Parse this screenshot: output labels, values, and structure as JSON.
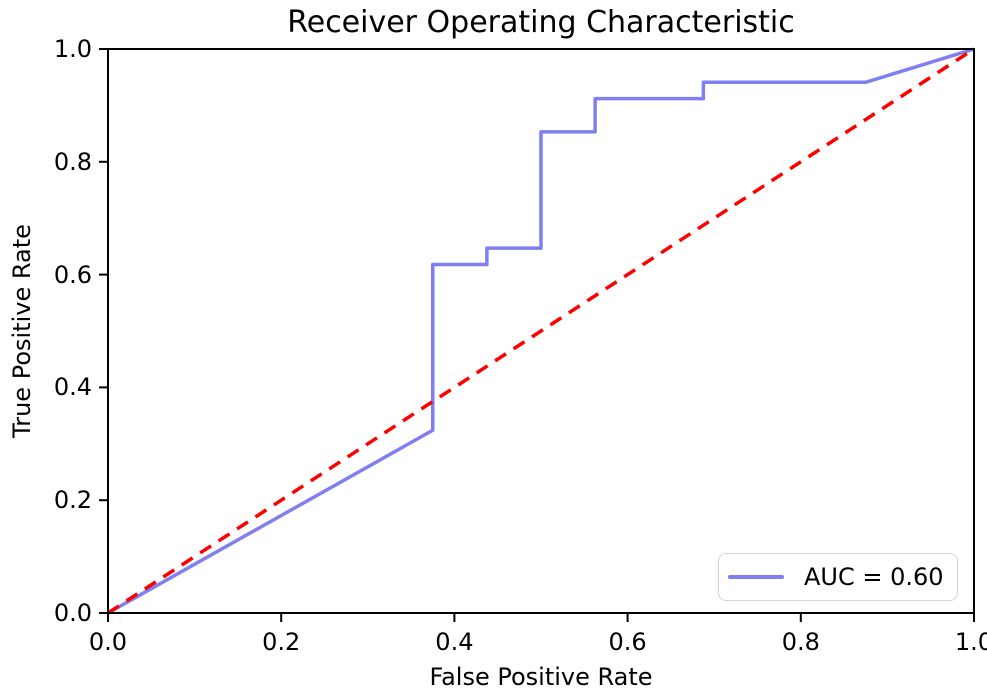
{
  "figure": {
    "background_color": "#ffffff",
    "spine_color": "#000000"
  },
  "chart_data": {
    "type": "line",
    "title": "Receiver Operating Characteristic",
    "xlabel": "False Positive Rate",
    "ylabel": "True Positive Rate",
    "xlim": [
      0.0,
      1.0
    ],
    "ylim": [
      0.0,
      1.0
    ],
    "grid": false,
    "x_ticks": [
      {
        "label": "0.0",
        "value": 0.0
      },
      {
        "label": "0.2",
        "value": 0.2
      },
      {
        "label": "0.4",
        "value": 0.4
      },
      {
        "label": "0.6",
        "value": 0.6
      },
      {
        "label": "0.8",
        "value": 0.8
      },
      {
        "label": "1.0",
        "value": 1.0
      }
    ],
    "y_ticks": [
      {
        "label": "0.0",
        "value": 0.0
      },
      {
        "label": "0.2",
        "value": 0.2
      },
      {
        "label": "0.4",
        "value": 0.4
      },
      {
        "label": "0.6",
        "value": 0.6
      },
      {
        "label": "0.8",
        "value": 0.8
      },
      {
        "label": "1.0",
        "value": 1.0
      }
    ],
    "series": [
      {
        "name": "roc-curve",
        "legend": "AUC = 0.60",
        "color": "#7f7ff2",
        "style": "solid",
        "points": [
          [
            0.0,
            0.0
          ],
          [
            0.375,
            0.324
          ],
          [
            0.375,
            0.618
          ],
          [
            0.4375,
            0.618
          ],
          [
            0.4375,
            0.647
          ],
          [
            0.5,
            0.647
          ],
          [
            0.5,
            0.853
          ],
          [
            0.5625,
            0.853
          ],
          [
            0.5625,
            0.912
          ],
          [
            0.6875,
            0.912
          ],
          [
            0.6875,
            0.941
          ],
          [
            0.875,
            0.941
          ],
          [
            1.0,
            1.0
          ]
        ]
      },
      {
        "name": "chance-diagonal",
        "legend": null,
        "color": "#ff0000",
        "style": "dashed",
        "points": [
          [
            0.0,
            0.0
          ],
          [
            1.0,
            1.0
          ]
        ]
      }
    ],
    "legend": {
      "position": "lower right",
      "label": "AUC = 0.60",
      "auc_value": 0.6
    }
  }
}
